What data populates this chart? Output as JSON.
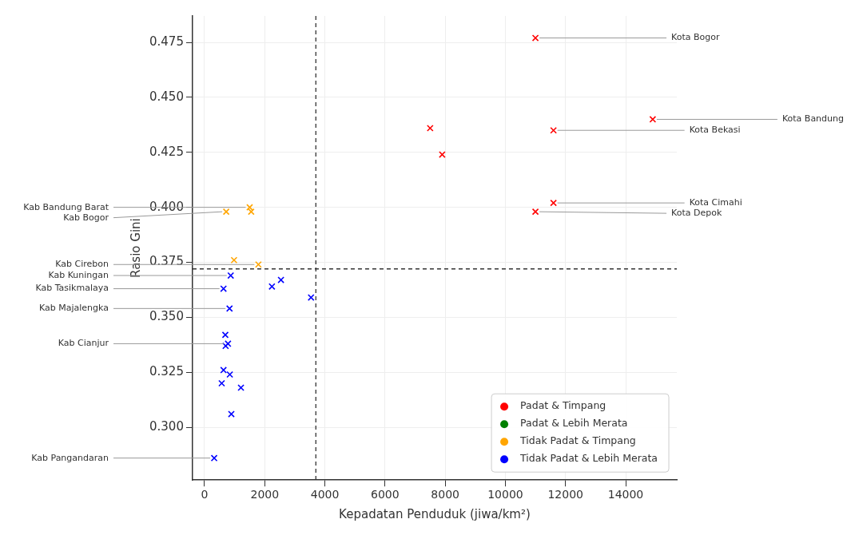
{
  "chart_data": {
    "type": "scatter",
    "xlabel": "Kepadatan Penduduk (jiwa/km²)",
    "ylabel": "Rasio Gini",
    "xlim": [
      -400,
      15700
    ],
    "xticks": [
      0,
      2000,
      4000,
      6000,
      8000,
      10000,
      12000,
      14000
    ],
    "ylim": [
      0.276,
      0.487
    ],
    "yticks": [
      {
        "value": 0.3,
        "label": "0.300"
      },
      0.325,
      {
        "value": 0.35,
        "label": "0.350"
      },
      0.375,
      {
        "value": 0.4,
        "label": "0.400"
      },
      0.425,
      {
        "value": 0.45,
        "label": "0.450"
      },
      0.475
    ],
    "grid": true,
    "legend": "bottom right",
    "marker": "cross",
    "series": [
      {
        "name": "Padat & Timpang",
        "color": "#ff0000",
        "x": [
          11000,
          14900,
          7500,
          11600,
          7900,
          11600,
          11000
        ],
        "values": [
          0.477,
          0.44,
          0.436,
          0.435,
          0.424,
          0.402,
          0.398
        ]
      },
      {
        "name": "Padat & Lebih Merata",
        "color": "#008000"
      },
      {
        "name": "Tidak Padat & Timpang",
        "color": "#ffa500",
        "x": [
          1500,
          1550,
          720,
          980,
          1790
        ],
        "values": [
          0.4,
          0.398,
          0.398,
          0.376,
          0.374
        ]
      },
      {
        "name": "Tidak Padat & Lebih Merata",
        "color": "#0000ff",
        "x": [
          870,
          630,
          2240,
          2540,
          3540,
          830,
          690,
          780,
          700,
          630,
          840,
          570,
          1210,
          890,
          320
        ],
        "values": [
          0.369,
          0.363,
          0.364,
          0.367,
          0.359,
          0.354,
          0.342,
          0.338,
          0.337,
          0.326,
          0.324,
          0.32,
          0.318,
          0.306,
          0.286
        ]
      }
    ],
    "ref_lines": [
      {
        "axis": "x",
        "value": 3700,
        "line_style": "dashed",
        "color": "#333333"
      },
      {
        "axis": "y",
        "value": 0.372,
        "line_style": "dashed",
        "color": "#333333"
      }
    ],
    "annotations": [
      {
        "text": "Kota Bogor",
        "x": 11000,
        "y": 0.477
      },
      {
        "text": "Kota Bandung",
        "x": 14900,
        "y": 0.44
      },
      {
        "text": "Kota Bekasi",
        "x": 11600,
        "y": 0.435
      },
      {
        "text": "Kota Cimahi",
        "x": 11600,
        "y": 0.402
      },
      {
        "text": "Kota Depok",
        "x": 11000,
        "y": 0.398
      },
      {
        "text": "Kab Bandung Barat",
        "x": 1500,
        "y": 0.4
      },
      {
        "text": "Kab Bogor",
        "x": 720,
        "y": 0.398
      },
      {
        "text": "Kab Cirebon",
        "x": 1790,
        "y": 0.374
      },
      {
        "text": "Kab Kuningan",
        "x": 870,
        "y": 0.369
      },
      {
        "text": "Kab Tasikmalaya",
        "x": 630,
        "y": 0.363
      },
      {
        "text": "Kab Majalengka",
        "x": 830,
        "y": 0.354
      },
      {
        "text": "Kab Cianjur",
        "x": 780,
        "y": 0.338
      },
      {
        "text": "Kab Pangandaran",
        "x": 320,
        "y": 0.286
      }
    ]
  }
}
